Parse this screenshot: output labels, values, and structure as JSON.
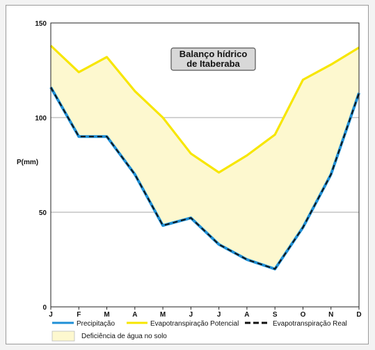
{
  "chart_data": {
    "type": "line",
    "title_lines": [
      "Balanço hídrico",
      "de Itaberaba"
    ],
    "ylabel": "P(mm)",
    "ylim": [
      0,
      150
    ],
    "yticks": [
      0,
      50,
      100,
      150
    ],
    "categories": [
      "J",
      "F",
      "M",
      "A",
      "M",
      "J",
      "J",
      "A",
      "S",
      "O",
      "N",
      "D"
    ],
    "grid": true,
    "series": [
      {
        "name": "Precipitação",
        "color": "#1e8fd6",
        "values": [
          116,
          90,
          90,
          70,
          43,
          47,
          33,
          25,
          20,
          42,
          70,
          113
        ]
      },
      {
        "name": "Evapotranspiração Potencial",
        "color": "#f7e600",
        "values": [
          138,
          124,
          132,
          114,
          100,
          81,
          71,
          80,
          91,
          120,
          128,
          137
        ]
      },
      {
        "name": "Evapotranspiração Real",
        "color": "#111111",
        "values": [
          116,
          90,
          90,
          70,
          43,
          47,
          33,
          25,
          20,
          42,
          70,
          113
        ]
      }
    ],
    "area_label": "Deficiência de água no solo",
    "area_color": "#fdf8cf"
  }
}
